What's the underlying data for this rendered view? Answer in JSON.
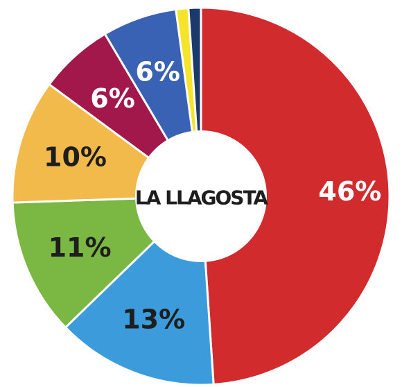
{
  "chart_data": {
    "type": "donut",
    "center_text": "LA LLAGOSTA",
    "values": [
      46,
      13,
      11,
      10,
      6,
      6,
      1,
      1
    ],
    "value_labels": [
      "46%",
      "13%",
      "11%",
      "10%",
      "6%",
      "6%",
      null,
      null
    ],
    "colors": [
      "#d12b2e",
      "#3b9bdb",
      "#7ab843",
      "#f2b94b",
      "#a3184b",
      "#3a62b4",
      "#f5e42a",
      "#1b3a6b"
    ],
    "label_colors": [
      "#ffffff",
      "#1e1e1e",
      "#1e1e1e",
      "#1e1e1e",
      "#ffffff",
      "#ffffff",
      null,
      null
    ]
  }
}
